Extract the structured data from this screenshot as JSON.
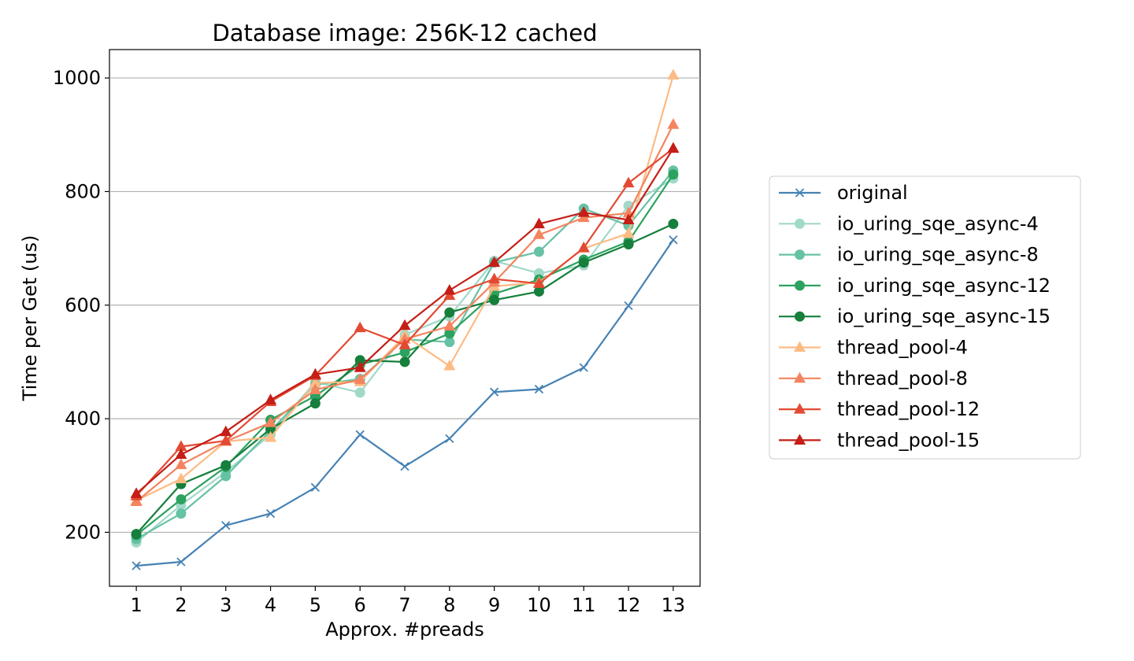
{
  "chart_data": {
    "type": "line",
    "title": "Database image: 256K-12 cached",
    "xlabel": "Approx. #preads",
    "ylabel": "Time per Get (us)",
    "x": [
      1,
      2,
      3,
      4,
      5,
      6,
      7,
      8,
      9,
      10,
      11,
      12,
      13
    ],
    "xlim": [
      0.4,
      13.6
    ],
    "ylim": [
      105,
      1050
    ],
    "yticks": [
      200,
      400,
      600,
      800,
      1000
    ],
    "grid": "y-major",
    "legend": "outside-right",
    "series": [
      {
        "name": "original",
        "color": "#4682b4",
        "marker": "x",
        "values": [
          141,
          148,
          212,
          233,
          279,
          372,
          316,
          365,
          447,
          452,
          490,
          599,
          715
        ]
      },
      {
        "name": "io_uring_sqe_async-4",
        "color": "#a1d9c9",
        "marker": "o",
        "values": [
          182,
          248,
          306,
          372,
          465,
          446,
          548,
          580,
          678,
          656,
          670,
          775,
          823
        ]
      },
      {
        "name": "io_uring_sqe_async-8",
        "color": "#66c2a4",
        "marker": "o",
        "values": [
          188,
          233,
          299,
          379,
          460,
          470,
          540,
          535,
          675,
          694,
          770,
          740,
          837
        ]
      },
      {
        "name": "io_uring_sqe_async-12",
        "color": "#2ca25f",
        "marker": "o",
        "values": [
          195,
          258,
          315,
          398,
          440,
          495,
          517,
          550,
          620,
          645,
          680,
          712,
          830
        ]
      },
      {
        "name": "io_uring_sqe_async-15",
        "color": "#157f3b",
        "marker": "o",
        "values": [
          197,
          285,
          318,
          382,
          427,
          503,
          500,
          587,
          609,
          624,
          675,
          707,
          743
        ]
      },
      {
        "name": "thread_pool-4",
        "color": "#fdbb84",
        "marker": "^",
        "values": [
          256,
          294,
          360,
          367,
          463,
          465,
          546,
          493,
          633,
          640,
          700,
          726,
          1005
        ]
      },
      {
        "name": "thread_pool-8",
        "color": "#f4845f",
        "marker": "^",
        "values": [
          254,
          319,
          360,
          393,
          451,
          469,
          540,
          563,
          640,
          724,
          754,
          762,
          918
        ]
      },
      {
        "name": "thread_pool-12",
        "color": "#e34a33",
        "marker": "^",
        "values": [
          264,
          351,
          361,
          430,
          476,
          560,
          530,
          617,
          646,
          638,
          701,
          815,
          876
        ]
      },
      {
        "name": "thread_pool-15",
        "color": "#c41e16",
        "marker": "^",
        "values": [
          268,
          337,
          377,
          433,
          478,
          490,
          564,
          626,
          675,
          743,
          763,
          750,
          876
        ]
      }
    ]
  }
}
